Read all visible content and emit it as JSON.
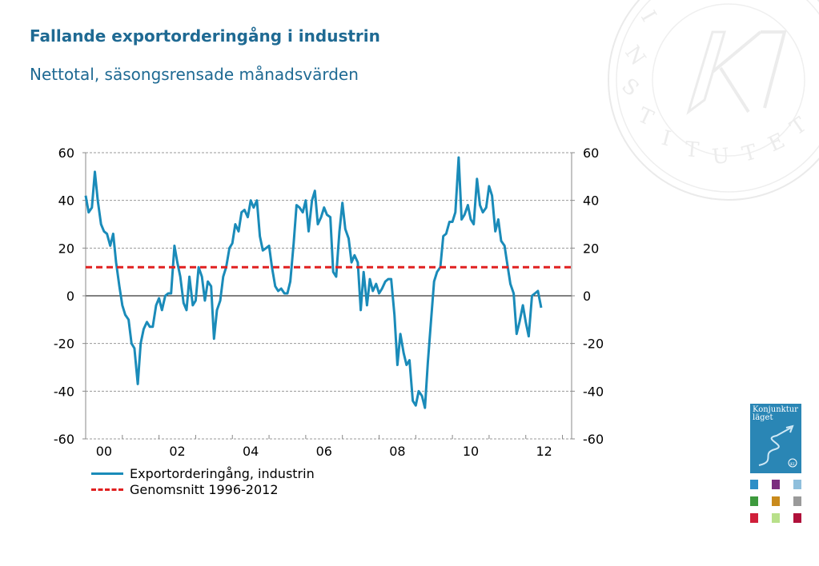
{
  "title": "Fallande exportorderingång i industrin",
  "subtitle": "Nettotal, säsongsrensade månadsvärden",
  "book": {
    "line1": "Konjunktur",
    "line2": "läget",
    "badge": "KI"
  },
  "thumbnails": [
    "#2d8fc7",
    "#7b2d7f",
    "#8fbfdc",
    "#3d9a3d",
    "#c98a1c",
    "#9a9a9a",
    "#d01f3a",
    "#b8e08a",
    "#b0103a"
  ],
  "chart_data": {
    "type": "line",
    "ylim": [
      -60,
      60
    ],
    "yticks": [
      -60,
      -40,
      -20,
      0,
      20,
      40,
      60
    ],
    "ytick_labels": [
      "-60",
      "-40",
      "-20",
      "0",
      "20",
      "40",
      "60"
    ],
    "xlim": [
      2000,
      2013.25
    ],
    "xticks": [
      2000,
      2002,
      2004,
      2006,
      2008,
      2010,
      2012
    ],
    "xtick_labels": [
      "00",
      "02",
      "04",
      "06",
      "08",
      "10",
      "12"
    ],
    "grid": true,
    "legend_position": "bottom-left",
    "series": [
      {
        "name": "Exportorderingång, industrin",
        "color": "#1a8bb9",
        "points": [
          [
            2000.0,
            42
          ],
          [
            2000.08,
            35
          ],
          [
            2000.17,
            37
          ],
          [
            2000.25,
            52
          ],
          [
            2000.33,
            40
          ],
          [
            2000.42,
            30
          ],
          [
            2000.5,
            27
          ],
          [
            2000.58,
            26
          ],
          [
            2000.67,
            21
          ],
          [
            2000.75,
            26
          ],
          [
            2000.83,
            14
          ],
          [
            2000.92,
            4
          ],
          [
            2001.0,
            -4
          ],
          [
            2001.08,
            -8
          ],
          [
            2001.17,
            -10
          ],
          [
            2001.25,
            -20
          ],
          [
            2001.33,
            -22
          ],
          [
            2001.42,
            -37
          ],
          [
            2001.5,
            -20
          ],
          [
            2001.58,
            -14
          ],
          [
            2001.67,
            -11
          ],
          [
            2001.75,
            -13
          ],
          [
            2001.83,
            -13
          ],
          [
            2001.92,
            -4
          ],
          [
            2002.0,
            -1
          ],
          [
            2002.08,
            -6
          ],
          [
            2002.17,
            0
          ],
          [
            2002.25,
            1
          ],
          [
            2002.33,
            1
          ],
          [
            2002.42,
            21
          ],
          [
            2002.5,
            14
          ],
          [
            2002.58,
            8
          ],
          [
            2002.67,
            -3
          ],
          [
            2002.75,
            -6
          ],
          [
            2002.83,
            8
          ],
          [
            2002.92,
            -4
          ],
          [
            2003.0,
            -2
          ],
          [
            2003.08,
            12
          ],
          [
            2003.17,
            8
          ],
          [
            2003.25,
            -2
          ],
          [
            2003.33,
            6
          ],
          [
            2003.42,
            4
          ],
          [
            2003.5,
            -18
          ],
          [
            2003.58,
            -6
          ],
          [
            2003.67,
            -2
          ],
          [
            2003.75,
            8
          ],
          [
            2003.83,
            12
          ],
          [
            2003.92,
            20
          ],
          [
            2004.0,
            22
          ],
          [
            2004.08,
            30
          ],
          [
            2004.17,
            27
          ],
          [
            2004.25,
            35
          ],
          [
            2004.33,
            36
          ],
          [
            2004.42,
            33
          ],
          [
            2004.5,
            40
          ],
          [
            2004.58,
            37
          ],
          [
            2004.67,
            40
          ],
          [
            2004.75,
            25
          ],
          [
            2004.83,
            19
          ],
          [
            2004.92,
            20
          ],
          [
            2005.0,
            21
          ],
          [
            2005.08,
            12
          ],
          [
            2005.17,
            4
          ],
          [
            2005.25,
            2
          ],
          [
            2005.33,
            3
          ],
          [
            2005.42,
            1
          ],
          [
            2005.5,
            1
          ],
          [
            2005.58,
            6
          ],
          [
            2005.67,
            22
          ],
          [
            2005.75,
            38
          ],
          [
            2005.83,
            37
          ],
          [
            2005.92,
            35
          ],
          [
            2006.0,
            40
          ],
          [
            2006.08,
            27
          ],
          [
            2006.17,
            40
          ],
          [
            2006.25,
            44
          ],
          [
            2006.33,
            30
          ],
          [
            2006.42,
            33
          ],
          [
            2006.5,
            37
          ],
          [
            2006.58,
            34
          ],
          [
            2006.67,
            33
          ],
          [
            2006.75,
            10
          ],
          [
            2006.83,
            8
          ],
          [
            2006.92,
            27
          ],
          [
            2007.0,
            39
          ],
          [
            2007.08,
            28
          ],
          [
            2007.17,
            24
          ],
          [
            2007.25,
            14
          ],
          [
            2007.33,
            17
          ],
          [
            2007.42,
            14
          ],
          [
            2007.5,
            -6
          ],
          [
            2007.58,
            10
          ],
          [
            2007.67,
            -4
          ],
          [
            2007.75,
            7
          ],
          [
            2007.83,
            2
          ],
          [
            2007.92,
            5
          ],
          [
            2008.0,
            1
          ],
          [
            2008.08,
            3
          ],
          [
            2008.17,
            6
          ],
          [
            2008.25,
            7
          ],
          [
            2008.33,
            7
          ],
          [
            2008.42,
            -8
          ],
          [
            2008.5,
            -29
          ],
          [
            2008.58,
            -16
          ],
          [
            2008.67,
            -24
          ],
          [
            2008.75,
            -29
          ],
          [
            2008.83,
            -27
          ],
          [
            2008.92,
            -44
          ],
          [
            2009.0,
            -46
          ],
          [
            2009.08,
            -40
          ],
          [
            2009.17,
            -42
          ],
          [
            2009.25,
            -47
          ],
          [
            2009.33,
            -28
          ],
          [
            2009.42,
            -10
          ],
          [
            2009.5,
            6
          ],
          [
            2009.58,
            10
          ],
          [
            2009.67,
            12
          ],
          [
            2009.75,
            25
          ],
          [
            2009.83,
            26
          ],
          [
            2009.92,
            31
          ],
          [
            2010.0,
            31
          ],
          [
            2010.08,
            35
          ],
          [
            2010.17,
            58
          ],
          [
            2010.25,
            32
          ],
          [
            2010.33,
            34
          ],
          [
            2010.42,
            38
          ],
          [
            2010.5,
            32
          ],
          [
            2010.58,
            30
          ],
          [
            2010.67,
            49
          ],
          [
            2010.75,
            38
          ],
          [
            2010.83,
            35
          ],
          [
            2010.92,
            37
          ],
          [
            2011.0,
            46
          ],
          [
            2011.08,
            42
          ],
          [
            2011.17,
            27
          ],
          [
            2011.25,
            32
          ],
          [
            2011.33,
            23
          ],
          [
            2011.42,
            21
          ],
          [
            2011.5,
            13
          ],
          [
            2011.58,
            5
          ],
          [
            2011.67,
            1
          ],
          [
            2011.75,
            -16
          ],
          [
            2011.83,
            -11
          ],
          [
            2011.92,
            -4
          ],
          [
            2012.0,
            -11
          ],
          [
            2012.08,
            -17
          ],
          [
            2012.17,
            0
          ],
          [
            2012.25,
            1
          ],
          [
            2012.33,
            2
          ],
          [
            2012.42,
            -5
          ]
        ]
      },
      {
        "name": "Genomsnitt 1996-2012",
        "color": "#e02020",
        "points": [
          [
            2000.0,
            12
          ],
          [
            2013.25,
            12
          ]
        ]
      }
    ]
  }
}
